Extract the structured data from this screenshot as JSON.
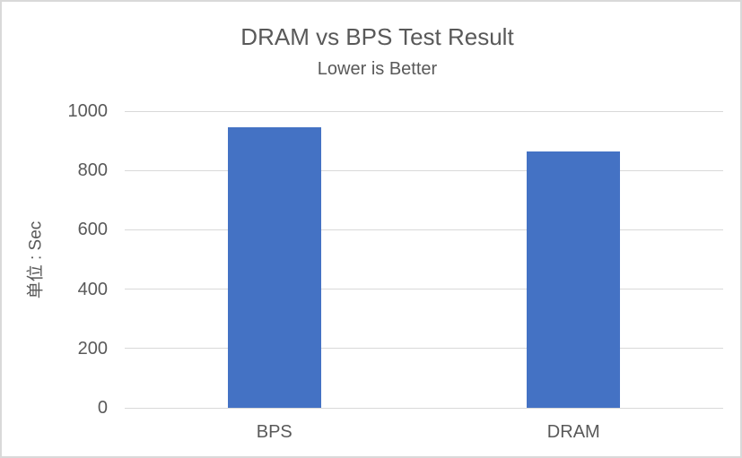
{
  "window": {
    "background": "#ffffff",
    "border_color": "#d9d9d9"
  },
  "chart_data": {
    "type": "bar",
    "title": "DRAM vs BPS Test Result",
    "subtitle": "Lower is Better",
    "xlabel": "",
    "ylabel": "单位 : Sec",
    "categories": [
      "BPS",
      "DRAM"
    ],
    "values": [
      945,
      865
    ],
    "ylim": [
      0,
      1000
    ],
    "yticks": [
      0,
      200,
      400,
      600,
      800,
      1000
    ],
    "grid": true,
    "legend": false,
    "colors": {
      "bar": "#4472c4",
      "text": "#595959",
      "gridline": "#d9d9d9"
    }
  }
}
